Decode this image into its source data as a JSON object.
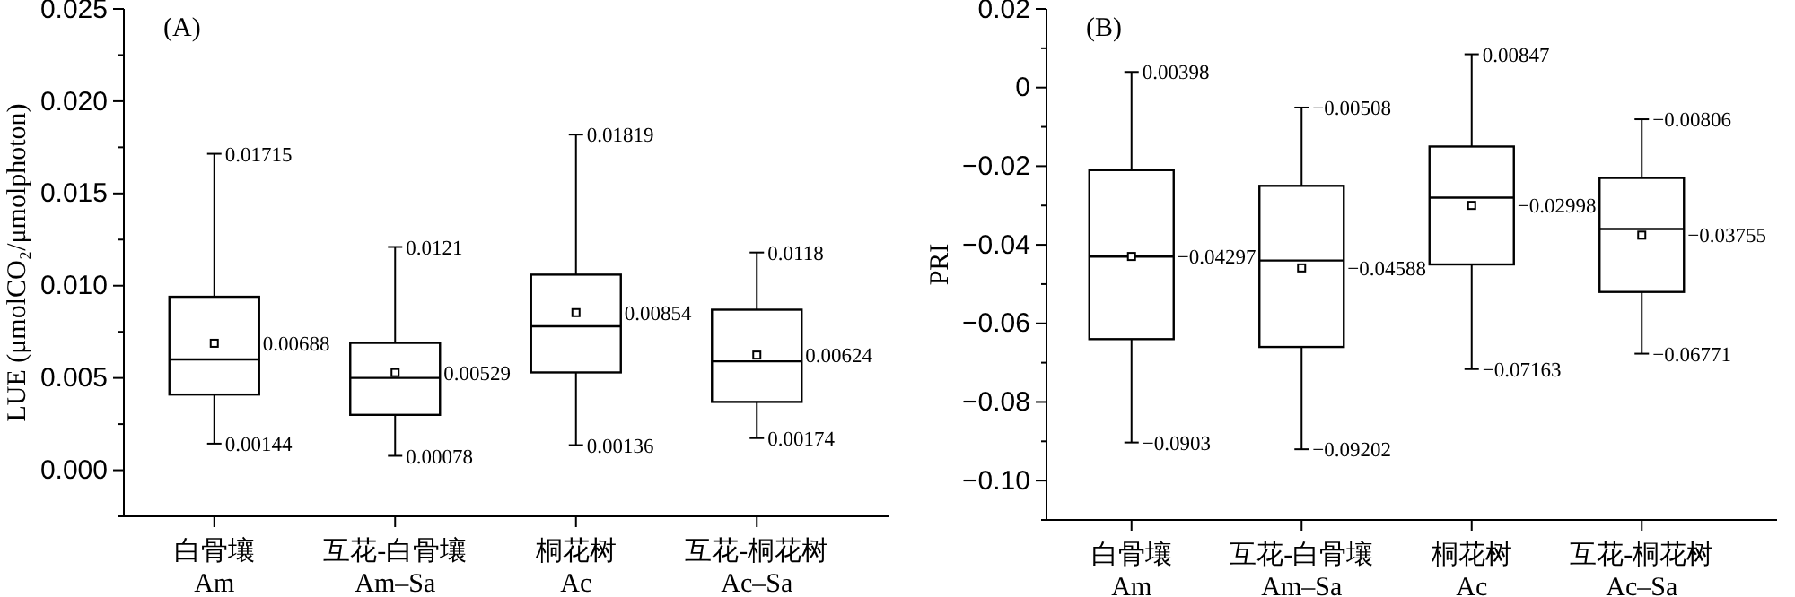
{
  "chart_data": [
    {
      "type": "box",
      "title": "(A)",
      "ylabel": "LUE (μmolCO₂/μmolphoton)",
      "categories": [
        "白骨壤\nAm",
        "互花-白骨壤\nAm–Sa",
        "桐花树\nAc",
        "互花-桐花树\nAc–Sa"
      ],
      "boxes": [
        {
          "low": 0.00144,
          "q1": 0.0041,
          "median": 0.006,
          "q3": 0.0094,
          "high": 0.01715,
          "mean": 0.00688
        },
        {
          "low": 0.00078,
          "q1": 0.003,
          "median": 0.005,
          "q3": 0.0069,
          "high": 0.0121,
          "mean": 0.00529
        },
        {
          "low": 0.00136,
          "q1": 0.0053,
          "median": 0.0078,
          "q3": 0.0106,
          "high": 0.01819,
          "mean": 0.00854
        },
        {
          "low": 0.00174,
          "q1": 0.0037,
          "median": 0.0059,
          "q3": 0.0087,
          "high": 0.0118,
          "mean": 0.00624
        }
      ],
      "ylim": [
        -0.0025,
        0.025
      ],
      "yticks": [
        {
          "value": -0.0025,
          "label": null
        },
        {
          "value": 0,
          "label": "0.000"
        },
        {
          "value": 0.0025,
          "label": null
        },
        {
          "value": 0.005,
          "label": "0.005"
        },
        {
          "value": 0.0075,
          "label": null
        },
        {
          "value": 0.01,
          "label": "0.010"
        },
        {
          "value": 0.0125,
          "label": null
        },
        {
          "value": 0.015,
          "label": "0.015"
        },
        {
          "value": 0.0175,
          "label": null
        },
        {
          "value": 0.02,
          "label": "0.020"
        },
        {
          "value": 0.0225,
          "label": null
        },
        {
          "value": 0.025,
          "label": "0.025"
        }
      ],
      "annotations": [
        {
          "text": "0.01715",
          "x": "白骨壤\nAm",
          "y": 0.01715
        },
        "0.00688",
        {
          "text": "0.00144",
          "x": "白骨壤\nAm",
          "y": 0.00144
        },
        {
          "text": "0.0121",
          "x": "互花-白骨壤\nAm–Sa",
          "y": 0.0121
        },
        "0.00529",
        {
          "text": "0.00078",
          "x": "互花-白骨壤\nAm–Sa",
          "y": 0.00078
        },
        {
          "text": "0.01819",
          "x": "桐花树\nAc",
          "y": 0.01819
        },
        "0.00854",
        {
          "text": "0.00136",
          "x": "桐花树\nAc",
          "y": 0.00136
        },
        {
          "text": "0.0118",
          "x": "互花-桐花树\nAc–Sa",
          "y": 0.0118
        },
        "0.00624",
        {
          "text": "0.00174",
          "x": "互花-桐花树\nAc–Sa",
          "y": 0.00174
        }
      ]
    },
    {
      "type": "box",
      "title": "(B)",
      "ylabel": "PRI",
      "categories": [
        "白骨壤\nAm",
        "互花-白骨壤\nAm–Sa",
        "桐花树\nAc",
        "互花-桐花树\nAc–Sa"
      ],
      "boxes": [
        {
          "low": -0.0903,
          "q1": -0.064,
          "median": -0.043,
          "q3": -0.021,
          "high": 0.00398,
          "mean": -0.04297
        },
        {
          "low": -0.09202,
          "q1": -0.066,
          "median": -0.044,
          "q3": -0.025,
          "high": -0.00508,
          "mean": -0.04588
        },
        {
          "low": -0.07163,
          "q1": -0.045,
          "median": -0.028,
          "q3": -0.015,
          "high": 0.00847,
          "mean": -0.02998
        },
        {
          "low": -0.06771,
          "q1": -0.052,
          "median": -0.036,
          "q3": -0.023,
          "high": -0.00806,
          "mean": -0.03755
        }
      ],
      "ylim": [
        -0.11,
        0.02
      ],
      "yticks": [
        {
          "value": -0.11,
          "label": null
        },
        {
          "value": -0.1,
          "label": "−0.10"
        },
        {
          "value": -0.09,
          "label": null
        },
        {
          "value": -0.08,
          "label": "−0.08"
        },
        {
          "value": -0.07,
          "label": null
        },
        {
          "value": -0.06,
          "label": "−0.06"
        },
        {
          "value": -0.05,
          "label": null
        },
        {
          "value": -0.04,
          "label": "−0.04"
        },
        {
          "value": -0.03,
          "label": null
        },
        {
          "value": -0.02,
          "label": "−0.02"
        },
        {
          "value": -0.01,
          "label": null
        },
        {
          "value": 0,
          "label": "0"
        },
        {
          "value": 0.01,
          "label": null
        },
        {
          "value": 0.02,
          "label": "0.02"
        }
      ],
      "annotations": [
        {
          "text": "0.00398",
          "x": "白骨壤\nAm",
          "y": 0.00398
        },
        "−0.04297",
        {
          "text": "−0.0903",
          "x": "白骨壤\nAm",
          "y": -0.0903
        },
        {
          "text": "−0.00508",
          "x": "互花-白骨壤\nAm–Sa",
          "y": -0.00508
        },
        "−0.04588",
        {
          "text": "−0.09202",
          "x": "互花-白骨壤\nAm–Sa",
          "y": -0.09202
        },
        {
          "text": "0.00847",
          "x": "桐花树\nAc",
          "y": 0.00847
        },
        "−0.02998",
        {
          "text": "−0.07163",
          "x": "桐花树\nAc",
          "y": -0.07163
        },
        {
          "text": "−0.00806",
          "x": "互花-桐花树\nAc–Sa",
          "y": -0.00806
        },
        "−0.03755",
        {
          "text": "−0.06771",
          "x": "互花-桐花树\nAc–Sa",
          "y": -0.06771
        }
      ]
    }
  ]
}
